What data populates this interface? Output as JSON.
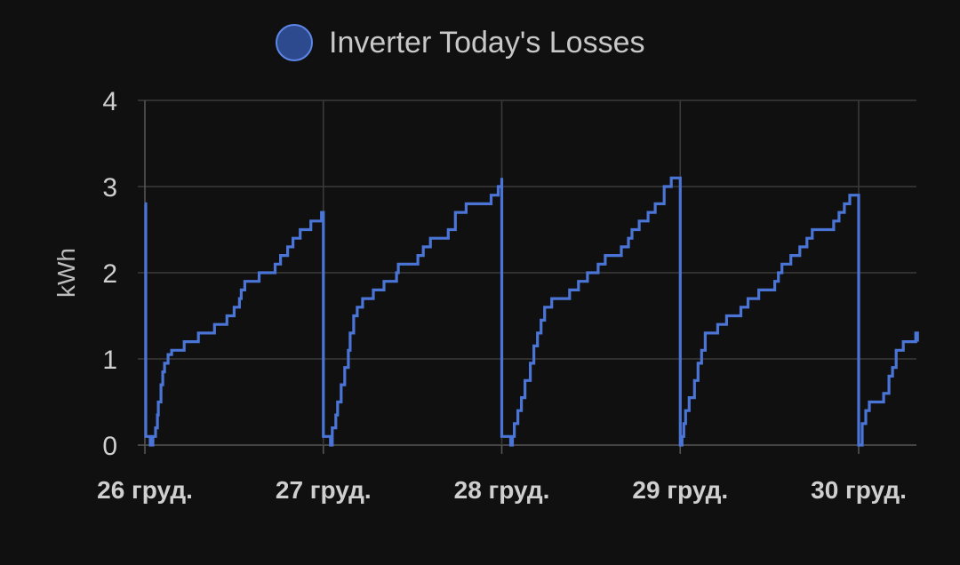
{
  "chart_data": {
    "type": "line",
    "step": true,
    "ylabel": "kWh",
    "ylim": [
      0,
      4
    ],
    "y_ticks": [
      "0",
      "1",
      "2",
      "3",
      "4"
    ],
    "x_tick_labels": [
      "26 груд.",
      "27 груд.",
      "28 груд.",
      "29 груд.",
      "30 груд."
    ],
    "xlim": [
      0,
      4.33
    ],
    "grid": true,
    "legend_position": "top-center",
    "series": [
      {
        "name": "Inverter Today's Losses",
        "color": "#4a74d6",
        "x_unit": "days since 26 груд.",
        "points": [
          [
            0.0,
            2.8
          ],
          [
            0.005,
            0.1
          ],
          [
            0.03,
            0.1
          ],
          [
            0.03,
            0.0
          ],
          [
            0.045,
            0.0
          ],
          [
            0.045,
            0.1
          ],
          [
            0.06,
            0.2
          ],
          [
            0.07,
            0.35
          ],
          [
            0.075,
            0.5
          ],
          [
            0.09,
            0.7
          ],
          [
            0.1,
            0.85
          ],
          [
            0.11,
            0.95
          ],
          [
            0.13,
            1.05
          ],
          [
            0.15,
            1.1
          ],
          [
            0.22,
            1.2
          ],
          [
            0.3,
            1.3
          ],
          [
            0.39,
            1.4
          ],
          [
            0.46,
            1.5
          ],
          [
            0.5,
            1.6
          ],
          [
            0.53,
            1.7
          ],
          [
            0.54,
            1.8
          ],
          [
            0.56,
            1.9
          ],
          [
            0.64,
            2.0
          ],
          [
            0.73,
            2.1
          ],
          [
            0.76,
            2.2
          ],
          [
            0.8,
            2.3
          ],
          [
            0.83,
            2.4
          ],
          [
            0.87,
            2.5
          ],
          [
            0.93,
            2.6
          ],
          [
            0.99,
            2.7
          ],
          [
            1.0,
            0.1
          ],
          [
            1.04,
            0.1
          ],
          [
            1.04,
            0.0
          ],
          [
            1.05,
            0.2
          ],
          [
            1.07,
            0.35
          ],
          [
            1.08,
            0.5
          ],
          [
            1.1,
            0.7
          ],
          [
            1.12,
            0.9
          ],
          [
            1.14,
            1.1
          ],
          [
            1.15,
            1.3
          ],
          [
            1.17,
            1.5
          ],
          [
            1.19,
            1.6
          ],
          [
            1.22,
            1.7
          ],
          [
            1.28,
            1.8
          ],
          [
            1.34,
            1.9
          ],
          [
            1.41,
            2.0
          ],
          [
            1.42,
            2.1
          ],
          [
            1.53,
            2.2
          ],
          [
            1.56,
            2.3
          ],
          [
            1.6,
            2.4
          ],
          [
            1.7,
            2.5
          ],
          [
            1.74,
            2.7
          ],
          [
            1.8,
            2.8
          ],
          [
            1.94,
            2.9
          ],
          [
            1.98,
            3.0
          ],
          [
            2.0,
            3.1
          ],
          [
            2.0,
            0.1
          ],
          [
            2.05,
            0.1
          ],
          [
            2.05,
            0.0
          ],
          [
            2.06,
            0.1
          ],
          [
            2.07,
            0.25
          ],
          [
            2.09,
            0.4
          ],
          [
            2.11,
            0.55
          ],
          [
            2.13,
            0.75
          ],
          [
            2.16,
            0.95
          ],
          [
            2.18,
            1.15
          ],
          [
            2.2,
            1.3
          ],
          [
            2.22,
            1.45
          ],
          [
            2.24,
            1.6
          ],
          [
            2.28,
            1.7
          ],
          [
            2.38,
            1.8
          ],
          [
            2.43,
            1.9
          ],
          [
            2.48,
            2.0
          ],
          [
            2.54,
            2.1
          ],
          [
            2.58,
            2.2
          ],
          [
            2.67,
            2.3
          ],
          [
            2.71,
            2.4
          ],
          [
            2.73,
            2.5
          ],
          [
            2.77,
            2.6
          ],
          [
            2.82,
            2.7
          ],
          [
            2.86,
            2.8
          ],
          [
            2.91,
            3.0
          ],
          [
            2.95,
            3.1
          ],
          [
            2.99,
            3.1
          ],
          [
            3.0,
            0.0
          ],
          [
            3.01,
            0.1
          ],
          [
            3.02,
            0.25
          ],
          [
            3.03,
            0.4
          ],
          [
            3.05,
            0.55
          ],
          [
            3.08,
            0.75
          ],
          [
            3.1,
            0.95
          ],
          [
            3.12,
            1.1
          ],
          [
            3.14,
            1.3
          ],
          [
            3.21,
            1.4
          ],
          [
            3.26,
            1.5
          ],
          [
            3.34,
            1.6
          ],
          [
            3.38,
            1.7
          ],
          [
            3.44,
            1.8
          ],
          [
            3.53,
            1.9
          ],
          [
            3.55,
            2.0
          ],
          [
            3.57,
            2.1
          ],
          [
            3.62,
            2.2
          ],
          [
            3.67,
            2.3
          ],
          [
            3.71,
            2.4
          ],
          [
            3.74,
            2.5
          ],
          [
            3.86,
            2.6
          ],
          [
            3.89,
            2.7
          ],
          [
            3.92,
            2.8
          ],
          [
            3.95,
            2.9
          ],
          [
            4.0,
            2.9
          ],
          [
            4.0,
            0.0
          ],
          [
            4.02,
            0.25
          ],
          [
            4.04,
            0.4
          ],
          [
            4.06,
            0.5
          ],
          [
            4.14,
            0.6
          ],
          [
            4.17,
            0.8
          ],
          [
            4.19,
            0.9
          ],
          [
            4.21,
            1.1
          ],
          [
            4.25,
            1.2
          ],
          [
            4.32,
            1.3
          ],
          [
            4.33,
            1.2
          ]
        ]
      }
    ]
  }
}
